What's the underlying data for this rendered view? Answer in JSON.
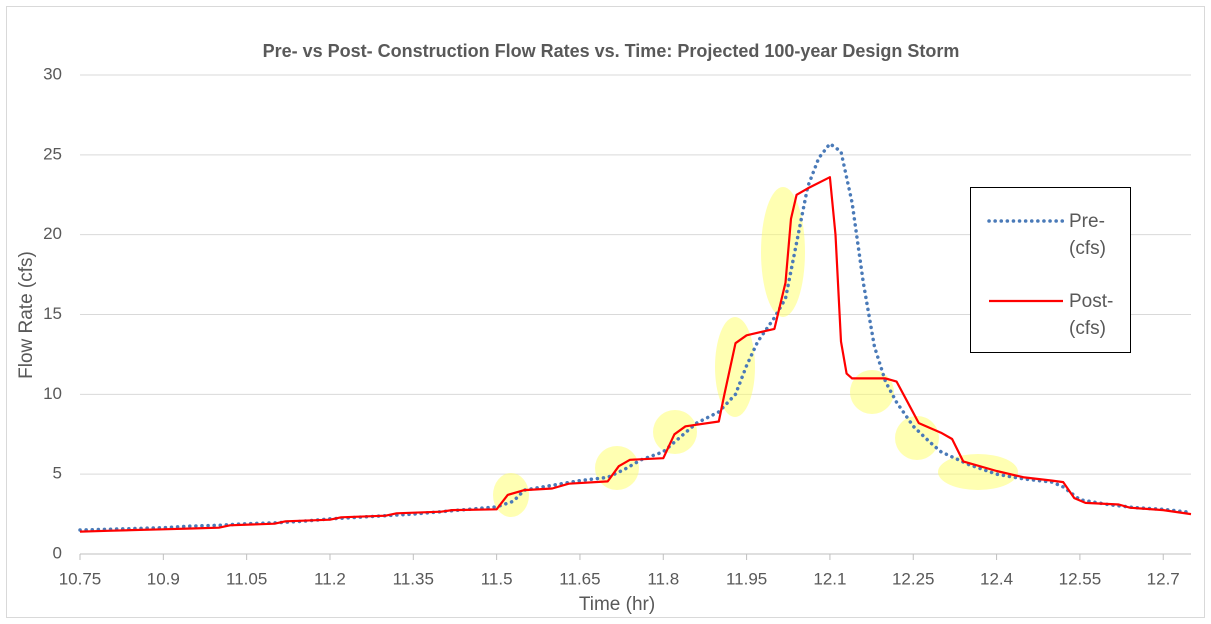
{
  "chart_data": {
    "type": "line",
    "title": "Pre- vs Post- Construction Flow Rates vs. Time:  Projected 100-year Design Storm",
    "xlabel": "Time (hr)",
    "ylabel": "Flow Rate (cfs)",
    "xlim": [
      10.75,
      12.75
    ],
    "xticks": [
      10.75,
      10.9,
      11.05,
      11.2,
      11.35,
      11.5,
      11.65,
      11.8,
      11.95,
      12.1,
      12.25,
      12.4,
      12.55,
      12.7
    ],
    "ylim": [
      0,
      30
    ],
    "yticks": [
      0,
      5,
      10,
      15,
      20,
      25,
      30
    ],
    "grid": true,
    "series": [
      {
        "name": "Pre- (cfs)",
        "color": "#4a7ab8",
        "style": "dotted",
        "x": [
          10.75,
          10.8,
          10.85,
          10.9,
          10.95,
          11.0,
          11.05,
          11.1,
          11.15,
          11.2,
          11.25,
          11.3,
          11.35,
          11.4,
          11.45,
          11.5,
          11.53,
          11.55,
          11.6,
          11.65,
          11.7,
          11.73,
          11.76,
          11.8,
          11.83,
          11.86,
          11.9,
          11.93,
          11.95,
          11.97,
          12.0,
          12.02,
          12.04,
          12.06,
          12.08,
          12.1,
          12.12,
          12.14,
          12.16,
          12.18,
          12.2,
          12.22,
          12.25,
          12.28,
          12.3,
          12.35,
          12.4,
          12.45,
          12.5,
          12.52,
          12.55,
          12.6,
          12.65,
          12.7,
          12.75
        ],
        "values": [
          1.5,
          1.55,
          1.6,
          1.65,
          1.75,
          1.8,
          1.9,
          1.95,
          2.05,
          2.2,
          2.3,
          2.4,
          2.5,
          2.65,
          2.8,
          2.95,
          3.3,
          4.0,
          4.3,
          4.6,
          4.8,
          5.3,
          5.9,
          6.4,
          7.3,
          8.2,
          8.9,
          10.0,
          11.8,
          13.3,
          14.8,
          16,
          19.5,
          23,
          24.8,
          25.7,
          25.2,
          22,
          17,
          13,
          10.8,
          9.5,
          8.0,
          7.0,
          6.4,
          5.6,
          5.0,
          4.7,
          4.5,
          4.2,
          3.4,
          3.1,
          2.9,
          2.8,
          2.6
        ]
      },
      {
        "name": "Post- (cfs)",
        "color": "#ff0000",
        "style": "solid",
        "x": [
          10.75,
          10.8,
          10.85,
          10.9,
          10.95,
          11.0,
          11.02,
          11.1,
          11.12,
          11.2,
          11.22,
          11.3,
          11.32,
          11.4,
          11.42,
          11.5,
          11.52,
          11.55,
          11.6,
          11.63,
          11.7,
          11.72,
          11.74,
          11.8,
          11.82,
          11.84,
          11.9,
          11.91,
          11.93,
          11.95,
          12.0,
          12.02,
          12.03,
          12.04,
          12.06,
          12.1,
          12.11,
          12.12,
          12.13,
          12.14,
          12.2,
          12.22,
          12.24,
          12.26,
          12.3,
          12.32,
          12.34,
          12.4,
          12.45,
          12.5,
          12.52,
          12.54,
          12.56,
          12.62,
          12.64,
          12.7,
          12.75
        ],
        "values": [
          1.4,
          1.45,
          1.5,
          1.55,
          1.6,
          1.65,
          1.8,
          1.9,
          2.05,
          2.15,
          2.3,
          2.4,
          2.55,
          2.65,
          2.75,
          2.8,
          3.7,
          4.0,
          4.1,
          4.4,
          4.55,
          5.5,
          5.9,
          6.0,
          7.5,
          8.0,
          8.3,
          10,
          13.2,
          13.7,
          14.1,
          17,
          21,
          22.5,
          22.9,
          23.6,
          20,
          13.3,
          11.3,
          11.0,
          11.0,
          10.8,
          9.5,
          8.2,
          7.6,
          7.2,
          5.8,
          5.2,
          4.8,
          4.6,
          4.5,
          3.5,
          3.2,
          3.1,
          2.9,
          2.75,
          2.5
        ]
      }
    ]
  }
}
